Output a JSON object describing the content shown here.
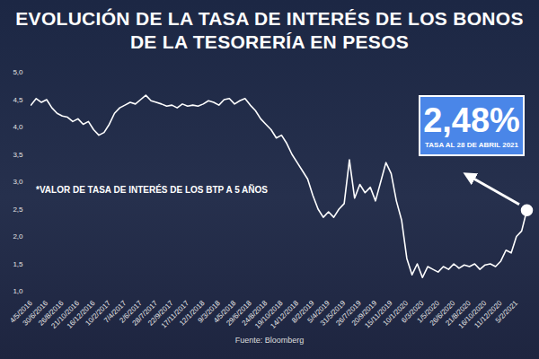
{
  "chart_data": {
    "type": "line",
    "title": "EVOLUCIÓN DE LA TASA DE INTERÉS DE LOS BONOS DE LA TESORERÍA EN PESOS",
    "annotations": [
      "*VALOR DE TASA DE INTERÉS DE LOS BTP A 5 AÑOS"
    ],
    "callout": {
      "text": "2,48%",
      "subtext": "TASA AL 28 DE ABRIL 2021"
    },
    "source": "Fuente: Bloomberg",
    "categories": [
      "4/5/2016",
      null,
      null,
      "30/6/2016",
      null,
      null,
      "26/8/2016",
      null,
      null,
      "21/10/2016",
      null,
      null,
      "16/12/2016",
      null,
      null,
      "10/2/2017",
      null,
      null,
      "7/4/2017",
      null,
      null,
      "2/6/2017",
      null,
      null,
      "28/7/2017",
      null,
      null,
      "22/9/2017",
      null,
      null,
      "17/11/2017",
      null,
      null,
      "12/1/2018",
      null,
      null,
      "9/3/2018",
      null,
      null,
      "4/5/2018",
      null,
      null,
      "29/6/2018",
      null,
      null,
      "24/8/2018",
      null,
      null,
      "19/10/2018",
      null,
      null,
      "14/12/2018",
      null,
      null,
      "8/2/2019",
      null,
      null,
      "5/4/2019",
      null,
      null,
      "31/5/2019",
      null,
      null,
      "26/7/2019",
      null,
      null,
      "20/9/2019",
      null,
      null,
      "15/11/2019",
      null,
      null,
      "10/1/2020",
      null,
      null,
      "6/3/2020",
      null,
      null,
      "1/5/2020",
      null,
      null,
      "26/6/2020",
      null,
      null,
      "21/8/2020",
      null,
      null,
      "16/10/2020",
      null,
      null,
      "11/12/2020",
      null,
      null,
      "5/2/2021",
      null,
      null
    ],
    "values": [
      4.4,
      4.52,
      4.45,
      4.5,
      4.35,
      4.25,
      4.2,
      4.18,
      4.1,
      4.15,
      4.05,
      4.1,
      3.95,
      3.85,
      3.9,
      4.05,
      4.25,
      4.35,
      4.4,
      4.45,
      4.42,
      4.5,
      4.58,
      4.48,
      4.45,
      4.42,
      4.38,
      4.4,
      4.35,
      4.42,
      4.38,
      4.4,
      4.38,
      4.42,
      4.48,
      4.45,
      4.4,
      4.5,
      4.52,
      4.42,
      4.48,
      4.52,
      4.4,
      4.3,
      4.15,
      4.05,
      3.95,
      3.8,
      3.85,
      3.7,
      3.5,
      3.35,
      3.2,
      3.05,
      2.75,
      2.5,
      2.35,
      2.45,
      2.35,
      2.5,
      2.6,
      3.4,
      2.7,
      2.95,
      2.8,
      2.9,
      2.65,
      3.0,
      3.35,
      3.15,
      2.65,
      2.3,
      1.6,
      1.3,
      1.5,
      1.25,
      1.45,
      1.4,
      1.35,
      1.45,
      1.4,
      1.5,
      1.42,
      1.48,
      1.45,
      1.5,
      1.4,
      1.48,
      1.5,
      1.45,
      1.55,
      1.75,
      1.7,
      2.0,
      2.1,
      2.48
    ],
    "color": "#ffffff",
    "marker": "last",
    "ylim": [
      1,
      5
    ],
    "yticks": [
      {
        "value": 1,
        "label": "1,0"
      },
      {
        "value": 1.5,
        "label": "1,5"
      },
      {
        "value": 2,
        "label": "2,0"
      },
      {
        "value": 2.5,
        "label": "2,5"
      },
      {
        "value": 3,
        "label": "3,0"
      },
      {
        "value": 3.5,
        "label": "3,5"
      },
      {
        "value": 4,
        "label": "4,0"
      },
      {
        "value": 4.5,
        "label": "4,5"
      },
      {
        "value": 5,
        "label": "5,0"
      }
    ],
    "grid": false
  }
}
